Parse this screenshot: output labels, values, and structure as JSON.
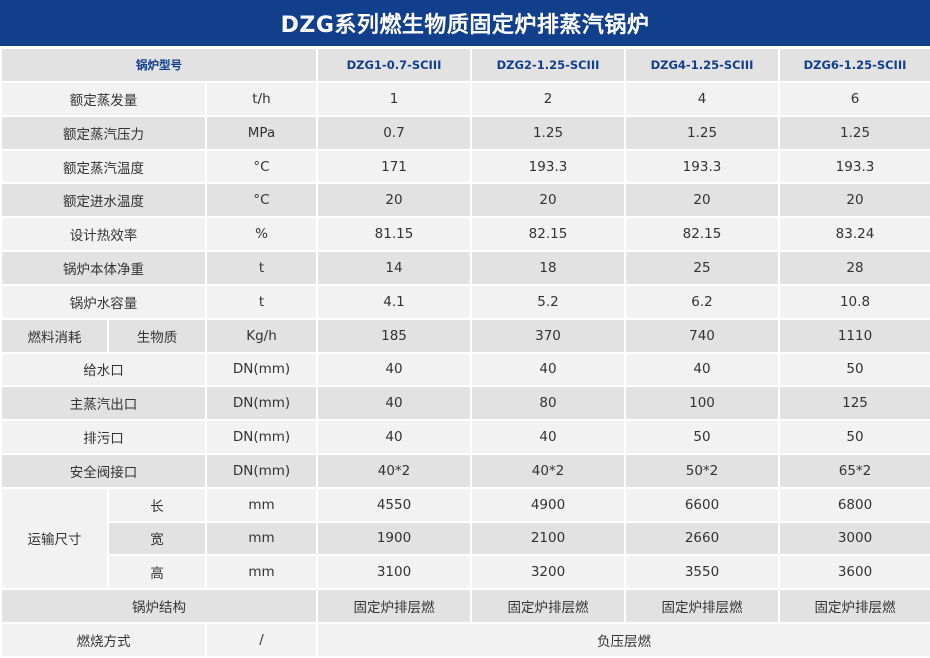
{
  "title": "DZG系列燃生物质固定炉排蒸汽锅炉",
  "header": {
    "label": "锅炉型号",
    "models": [
      "DZG1-0.7-SCIII",
      "DZG2-1.25-SCIII",
      "DZG4-1.25-SCIII",
      "DZG6-1.25-SCIII"
    ]
  },
  "rows": [
    {
      "label": "额定蒸发量",
      "unit": "t/h",
      "values": [
        "1",
        "2",
        "4",
        "6"
      ]
    },
    {
      "label": "额定蒸汽压力",
      "unit": "MPa",
      "values": [
        "0.7",
        "1.25",
        "1.25",
        "1.25"
      ]
    },
    {
      "label": "额定蒸汽温度",
      "unit": "°C",
      "values": [
        "171",
        "193.3",
        "193.3",
        "193.3"
      ]
    },
    {
      "label": "额定进水温度",
      "unit": "°C",
      "values": [
        "20",
        "20",
        "20",
        "20"
      ]
    },
    {
      "label": "设计热效率",
      "unit": "%",
      "values": [
        "81.15",
        "82.15",
        "82.15",
        "83.24"
      ]
    },
    {
      "label": "锅炉本体净重",
      "unit": "t",
      "values": [
        "14",
        "18",
        "25",
        "28"
      ]
    },
    {
      "label": "锅炉水容量",
      "unit": "t",
      "values": [
        "4.1",
        "5.2",
        "6.2",
        "10.8"
      ]
    }
  ],
  "fuel": {
    "label": "燃料消耗",
    "sub": "生物质",
    "unit": "Kg/h",
    "values": [
      "185",
      "370",
      "740",
      "1110"
    ]
  },
  "ports": [
    {
      "label": "给水口",
      "unit": "DN(mm)",
      "values": [
        "40",
        "40",
        "40",
        "50"
      ]
    },
    {
      "label": "主蒸汽出口",
      "unit": "DN(mm)",
      "values": [
        "40",
        "80",
        "100",
        "125"
      ]
    },
    {
      "label": "排污口",
      "unit": "DN(mm)",
      "values": [
        "40",
        "40",
        "50",
        "50"
      ]
    },
    {
      "label": "安全阀接口",
      "unit": "DN(mm)",
      "values": [
        "40*2",
        "40*2",
        "50*2",
        "65*2"
      ]
    }
  ],
  "transport": {
    "label": "运输尺寸",
    "rows": [
      {
        "sub": "长",
        "unit": "mm",
        "values": [
          "4550",
          "4900",
          "6600",
          "6800"
        ]
      },
      {
        "sub": "宽",
        "unit": "mm",
        "values": [
          "1900",
          "2100",
          "2660",
          "3000"
        ]
      },
      {
        "sub": "高",
        "unit": "mm",
        "values": [
          "3100",
          "3200",
          "3550",
          "3600"
        ]
      }
    ]
  },
  "structure": {
    "label": "锅炉结构",
    "values": [
      "固定炉排层燃",
      "固定炉排层燃",
      "固定炉排层燃",
      "固定炉排层燃"
    ]
  },
  "combustion": {
    "label": "燃烧方式",
    "unit": "/",
    "value": "负压层燃"
  }
}
